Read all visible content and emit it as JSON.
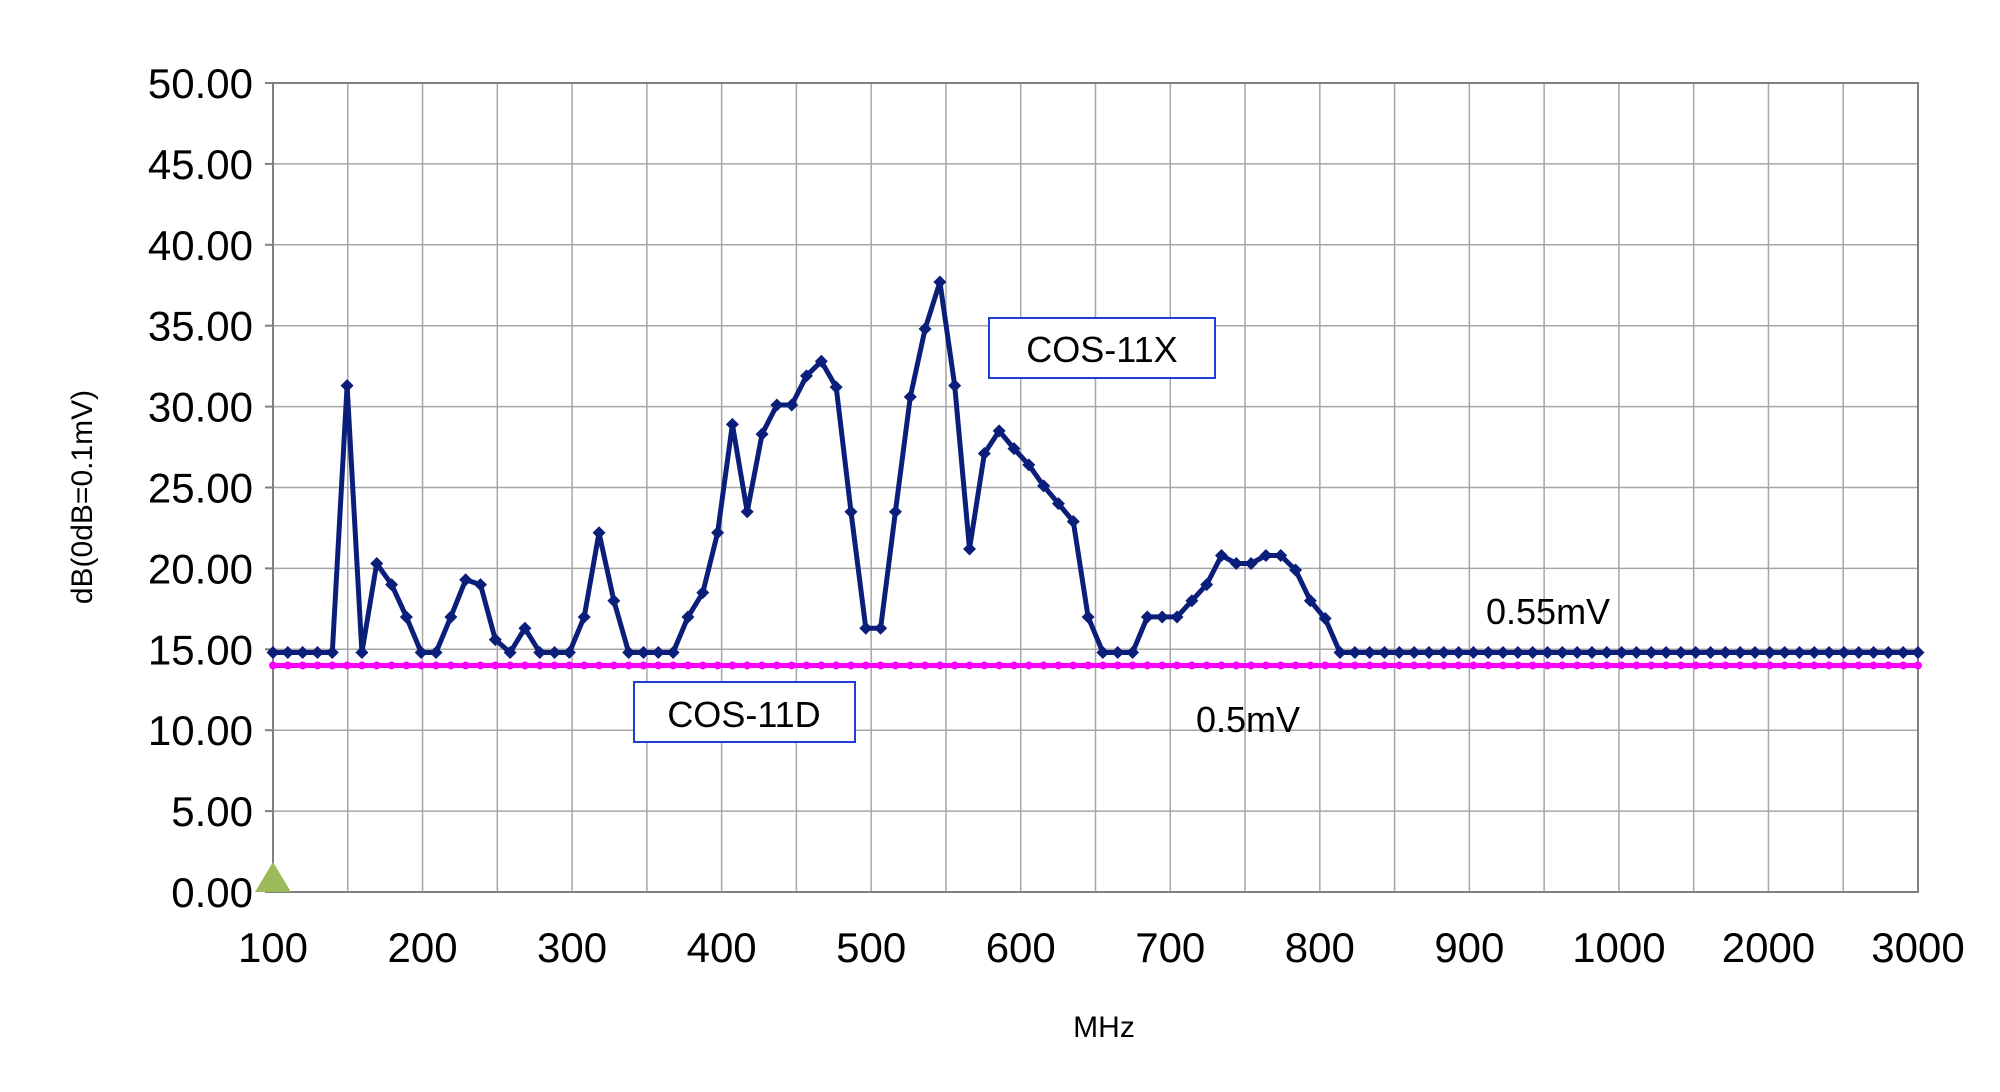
{
  "chart_data": {
    "type": "line",
    "xlabel": "MHz",
    "ylabel": "dB(0dB=0.1mV)",
    "ylim": [
      0,
      50
    ],
    "y_ticks": [
      "0.00",
      "5.00",
      "10.00",
      "15.00",
      "20.00",
      "25.00",
      "30.00",
      "35.00",
      "40.00",
      "45.00",
      "50.00"
    ],
    "x_tick_labels": [
      "100",
      "200",
      "300",
      "400",
      "500",
      "600",
      "700",
      "800",
      "900",
      "1000",
      "2000",
      "3000"
    ],
    "grid": true,
    "series": [
      {
        "name": "COS-11X",
        "color": "#0b1e7a",
        "marker": "diamond",
        "values": [
          14.8,
          14.8,
          14.8,
          14.8,
          14.8,
          31.3,
          14.8,
          20.3,
          19.0,
          17.0,
          14.8,
          14.8,
          17.0,
          19.3,
          19.0,
          15.6,
          14.8,
          16.3,
          14.8,
          14.8,
          14.8,
          17.0,
          22.2,
          18.0,
          14.8,
          14.8,
          14.8,
          14.8,
          17.0,
          18.5,
          22.2,
          28.9,
          23.5,
          28.3,
          30.1,
          30.1,
          31.9,
          32.8,
          31.2,
          23.5,
          16.3,
          16.3,
          23.5,
          30.6,
          34.8,
          37.7,
          31.3,
          21.2,
          27.1,
          28.5,
          27.4,
          26.4,
          25.1,
          24.0,
          22.9,
          17.0,
          14.8,
          14.8,
          14.8,
          17.0,
          17.0,
          17.0,
          18.0,
          19.0,
          20.8,
          20.3,
          20.3,
          20.8,
          20.8,
          19.9,
          18.0,
          16.9,
          14.8,
          14.8,
          14.8,
          14.8,
          14.8,
          14.8,
          14.8,
          14.8,
          14.8,
          14.8,
          14.8,
          14.8,
          14.8,
          14.8,
          14.8,
          14.8,
          14.8,
          14.8,
          14.8,
          14.8,
          14.8,
          14.8,
          14.8,
          14.8,
          14.8,
          14.8,
          14.8,
          14.8,
          14.8,
          14.8,
          14.8,
          14.8,
          14.8,
          14.8,
          14.8,
          14.8,
          14.8,
          14.8,
          14.8,
          14.8
        ]
      },
      {
        "name": "COS-11D",
        "color": "#ff00ff",
        "marker": "dot",
        "constant": 14.0,
        "count": 112
      }
    ],
    "annotations": {
      "series1_label": "COS-11X",
      "series2_label": "COS-11D",
      "level_high": "0.55mV",
      "level_low": "0.5mV"
    },
    "origin_marker_color": "#9bbb59"
  }
}
